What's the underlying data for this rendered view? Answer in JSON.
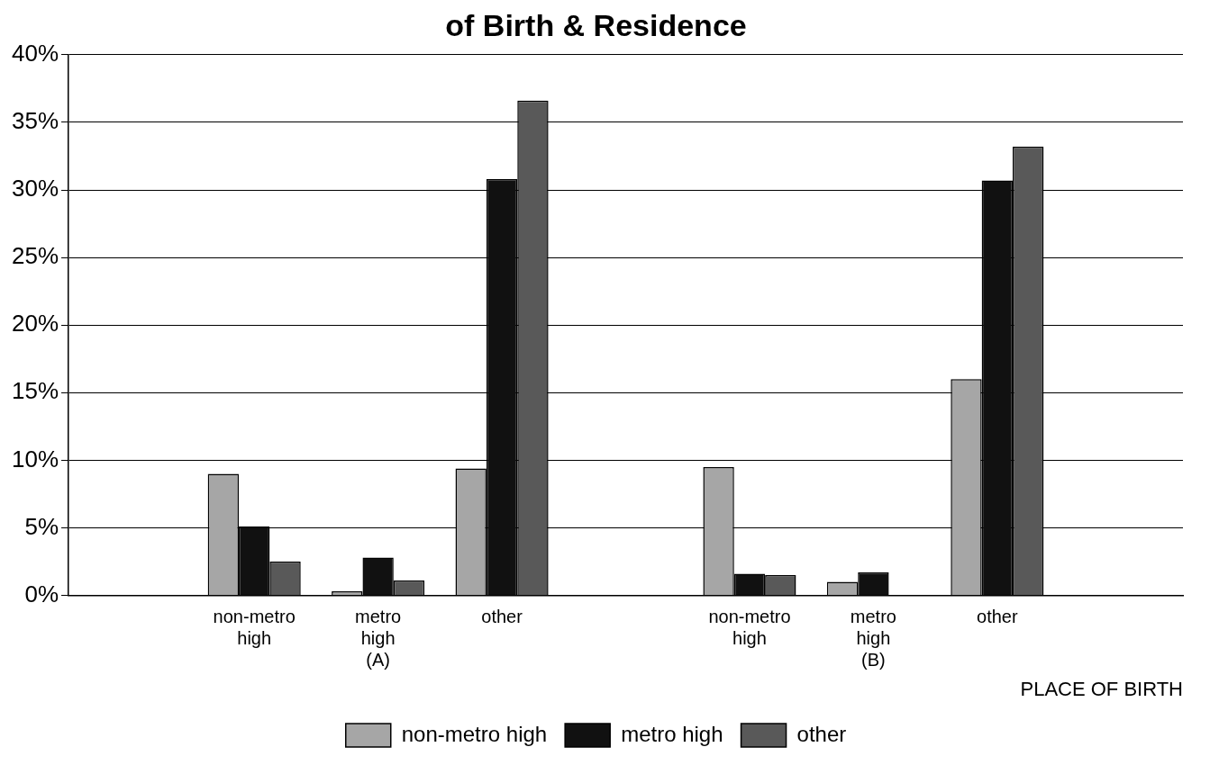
{
  "chart_data": {
    "type": "bar",
    "title": "of Birth & Residence",
    "xlabel": "PLACE OF BIRTH",
    "categories": [
      null,
      "non-metro\nhigh",
      "metro\nhigh\n(A)",
      "other",
      null,
      "non-metro\nhigh",
      "metro\nhigh\n(B)",
      "other",
      null
    ],
    "series": [
      {
        "name": "non-metro high",
        "color": "#a6a6a6",
        "values": [
          null,
          9.0,
          0.3,
          9.4,
          null,
          9.5,
          1.0,
          16.0,
          null
        ]
      },
      {
        "name": "metro high",
        "color": "#111111",
        "values": [
          null,
          5.1,
          2.8,
          30.8,
          null,
          1.6,
          1.7,
          30.7,
          null
        ]
      },
      {
        "name": "other",
        "color": "#595959",
        "values": [
          null,
          2.5,
          1.1,
          36.6,
          null,
          1.5,
          0.0,
          33.2,
          null
        ]
      }
    ],
    "ylim": [
      0,
      40
    ],
    "yticks": [
      {
        "value": 0,
        "label": "0%"
      },
      {
        "value": 5,
        "label": "5%"
      },
      {
        "value": 10,
        "label": "10%"
      },
      {
        "value": 15,
        "label": "15%"
      },
      {
        "value": 20,
        "label": "20%"
      },
      {
        "value": 25,
        "label": "25%"
      },
      {
        "value": 30,
        "label": "30%"
      },
      {
        "value": 35,
        "label": "35%"
      },
      {
        "value": 40,
        "label": "40%"
      }
    ],
    "grid": "y",
    "legend": "bottom"
  }
}
